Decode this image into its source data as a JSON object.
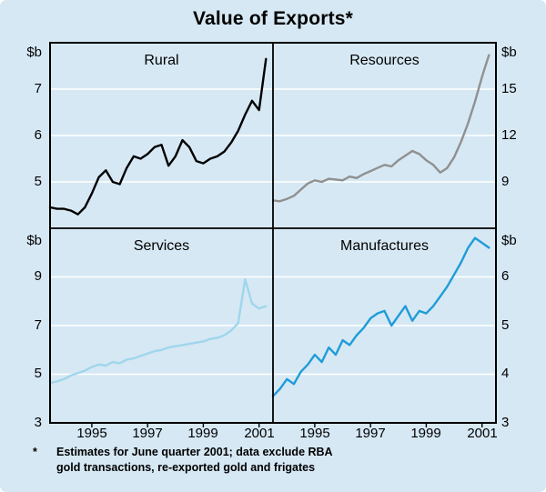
{
  "title": "Value of Exports*",
  "colors": {
    "background": "#d6e8f4",
    "grid": "#ffffff",
    "axis": "#000000",
    "rural": "#000000",
    "resources": "#909090",
    "services": "#9fd6ec",
    "manufactures": "#1e9cd7"
  },
  "footnote": {
    "marker": "*",
    "line1": "Estimates for June quarter 2001; data exclude RBA",
    "line2": "gold transactions, re-exported gold and frigates"
  },
  "chart_data": [
    {
      "type": "line",
      "name": "rural",
      "title": "Rural",
      "unit": "$b",
      "axis_side": "left",
      "color": "#000000",
      "xlim": [
        1993.5,
        2001.5
      ],
      "x_start": 1993.5,
      "x_step": 0.25,
      "xticks": [
        1995,
        1997,
        1999,
        2001
      ],
      "xtick_labels": [],
      "ylim": [
        4,
        8
      ],
      "gridlines": [
        5,
        6,
        7
      ],
      "ytick_labels": [
        "7",
        "6",
        "5"
      ],
      "values": [
        4.45,
        4.42,
        4.42,
        4.38,
        4.3,
        4.45,
        4.75,
        5.1,
        5.25,
        5.0,
        4.95,
        5.3,
        5.55,
        5.5,
        5.6,
        5.75,
        5.8,
        5.35,
        5.55,
        5.9,
        5.75,
        5.45,
        5.4,
        5.5,
        5.55,
        5.65,
        5.85,
        6.1,
        6.45,
        6.75,
        6.55,
        7.65
      ]
    },
    {
      "type": "line",
      "name": "resources",
      "title": "Resources",
      "unit": "$b",
      "axis_side": "right",
      "color": "#909090",
      "xlim": [
        1993.5,
        2001.5
      ],
      "x_start": 1993.5,
      "x_step": 0.25,
      "xticks": [
        1995,
        1997,
        1999,
        2001
      ],
      "xtick_labels": [],
      "ylim": [
        6,
        18
      ],
      "gridlines": [
        9,
        12,
        15
      ],
      "ytick_labels": [
        "15",
        "12",
        "9"
      ],
      "values": [
        7.8,
        7.75,
        7.9,
        8.1,
        8.5,
        8.9,
        9.1,
        9.0,
        9.2,
        9.15,
        9.1,
        9.35,
        9.25,
        9.5,
        9.7,
        9.9,
        10.1,
        10.0,
        10.4,
        10.7,
        11.0,
        10.8,
        10.4,
        10.1,
        9.6,
        9.9,
        10.6,
        11.6,
        12.8,
        14.2,
        15.8,
        17.2
      ]
    },
    {
      "type": "line",
      "name": "services",
      "title": "Services",
      "unit": "$b",
      "axis_side": "left",
      "color": "#9fd6ec",
      "xlim": [
        1993.5,
        2001.5
      ],
      "x_start": 1993.5,
      "x_step": 0.25,
      "xticks": [
        1995,
        1997,
        1999,
        2001
      ],
      "xtick_labels": [
        "1995",
        "1997",
        "1999",
        "2001"
      ],
      "ylim": [
        3,
        11
      ],
      "gridlines": [
        5,
        7,
        9
      ],
      "ytick_labels": [
        "9",
        "7",
        "5",
        "3"
      ],
      "values": [
        4.65,
        4.7,
        4.8,
        4.95,
        5.05,
        5.15,
        5.3,
        5.4,
        5.35,
        5.5,
        5.45,
        5.6,
        5.65,
        5.75,
        5.85,
        5.95,
        6.0,
        6.1,
        6.15,
        6.2,
        6.25,
        6.3,
        6.35,
        6.45,
        6.5,
        6.6,
        6.8,
        7.1,
        8.9,
        7.9,
        7.7,
        7.8
      ]
    },
    {
      "type": "line",
      "name": "manufactures",
      "title": "Manufactures",
      "unit": "$b",
      "axis_side": "right",
      "color": "#1e9cd7",
      "xlim": [
        1993.5,
        2001.5
      ],
      "x_start": 1993.5,
      "x_step": 0.25,
      "xticks": [
        1995,
        1997,
        1999,
        2001
      ],
      "xtick_labels": [
        "1995",
        "1997",
        "1999",
        "2001"
      ],
      "ylim": [
        3,
        7
      ],
      "gridlines": [
        4,
        5,
        6
      ],
      "ytick_labels": [
        "6",
        "5",
        "4",
        "3"
      ],
      "values": [
        3.55,
        3.7,
        3.9,
        3.8,
        4.05,
        4.2,
        4.4,
        4.25,
        4.55,
        4.4,
        4.7,
        4.6,
        4.8,
        4.95,
        5.15,
        5.25,
        5.3,
        5.0,
        5.2,
        5.4,
        5.1,
        5.3,
        5.25,
        5.4,
        5.6,
        5.8,
        6.05,
        6.3,
        6.6,
        6.8,
        6.7,
        6.6
      ]
    }
  ]
}
